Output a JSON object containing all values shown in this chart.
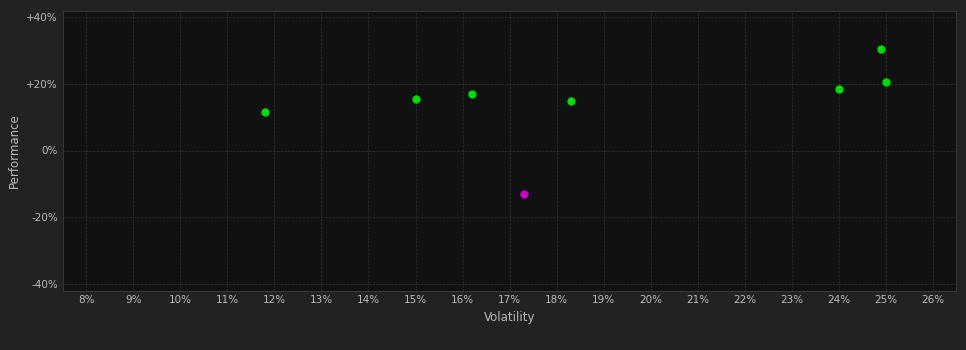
{
  "background_color": "#222222",
  "plot_bg_color": "#111111",
  "grid_color": "#333333",
  "text_color": "#bbbbbb",
  "xlabel": "Volatility",
  "ylabel": "Performance",
  "xlim": [
    0.075,
    0.265
  ],
  "ylim": [
    -0.42,
    0.42
  ],
  "green_points": [
    [
      0.118,
      0.115
    ],
    [
      0.15,
      0.155
    ],
    [
      0.162,
      0.17
    ],
    [
      0.183,
      0.15
    ],
    [
      0.24,
      0.185
    ],
    [
      0.25,
      0.205
    ],
    [
      0.249,
      0.305
    ]
  ],
  "magenta_points": [
    [
      0.173,
      -0.13
    ]
  ],
  "green_color": "#00dd00",
  "magenta_color": "#cc00cc",
  "marker_size": 25
}
